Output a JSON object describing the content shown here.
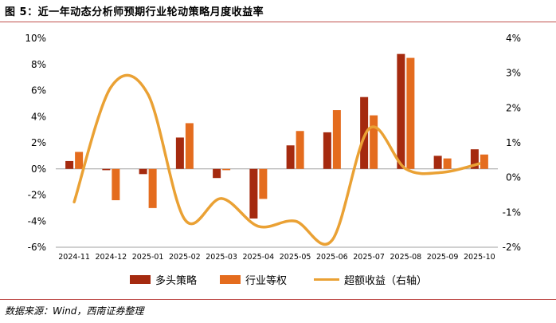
{
  "figure": {
    "title": "图 5：近一年动态分析师预期行业轮动策略月度收益率",
    "source": "数据来源：Wind，西南证券整理"
  },
  "colors": {
    "strategy": "#a52a0f",
    "benchmark": "#e46c1e",
    "excess": "#eaa134",
    "rule": "#c0504d",
    "axis_line": "#a0a0a0"
  },
  "chart_data": {
    "type": "bar",
    "categories": [
      "2024-11",
      "2024-12",
      "2025-01",
      "2025-02",
      "2025-03",
      "2025-04",
      "2025-05",
      "2025-06",
      "2025-07",
      "2025-08",
      "2025-09",
      "2025-10"
    ],
    "series": [
      {
        "name": "多头策略",
        "axis": "left",
        "type": "bar",
        "values": [
          0.6,
          -0.1,
          -0.4,
          2.4,
          -0.7,
          -3.8,
          1.8,
          2.8,
          5.5,
          8.8,
          1.0,
          1.5
        ]
      },
      {
        "name": "行业等权",
        "axis": "left",
        "type": "bar",
        "values": [
          1.3,
          -2.4,
          -3.0,
          3.5,
          -0.1,
          -2.3,
          2.9,
          4.5,
          4.1,
          8.5,
          0.8,
          1.1
        ]
      },
      {
        "name": "超额收益（右轴）",
        "axis": "right",
        "type": "line",
        "values": [
          -0.7,
          2.6,
          2.4,
          -1.2,
          -0.6,
          -1.4,
          -1.25,
          -1.8,
          1.4,
          0.25,
          0.15,
          0.4
        ]
      }
    ],
    "left_axis": {
      "ylim": [
        -6,
        10
      ],
      "ticks": [
        "10%",
        "8%",
        "6%",
        "4%",
        "2%",
        "0%",
        "-2%",
        "-4%",
        "-6%"
      ]
    },
    "right_axis": {
      "ylim": [
        -2,
        4
      ],
      "ticks": [
        "4%",
        "3%",
        "2%",
        "1%",
        "0%",
        "-1%",
        "-2%"
      ]
    },
    "legend": [
      "多头策略",
      "行业等权",
      "超额收益（右轴）"
    ],
    "legend_position": "bottom"
  }
}
